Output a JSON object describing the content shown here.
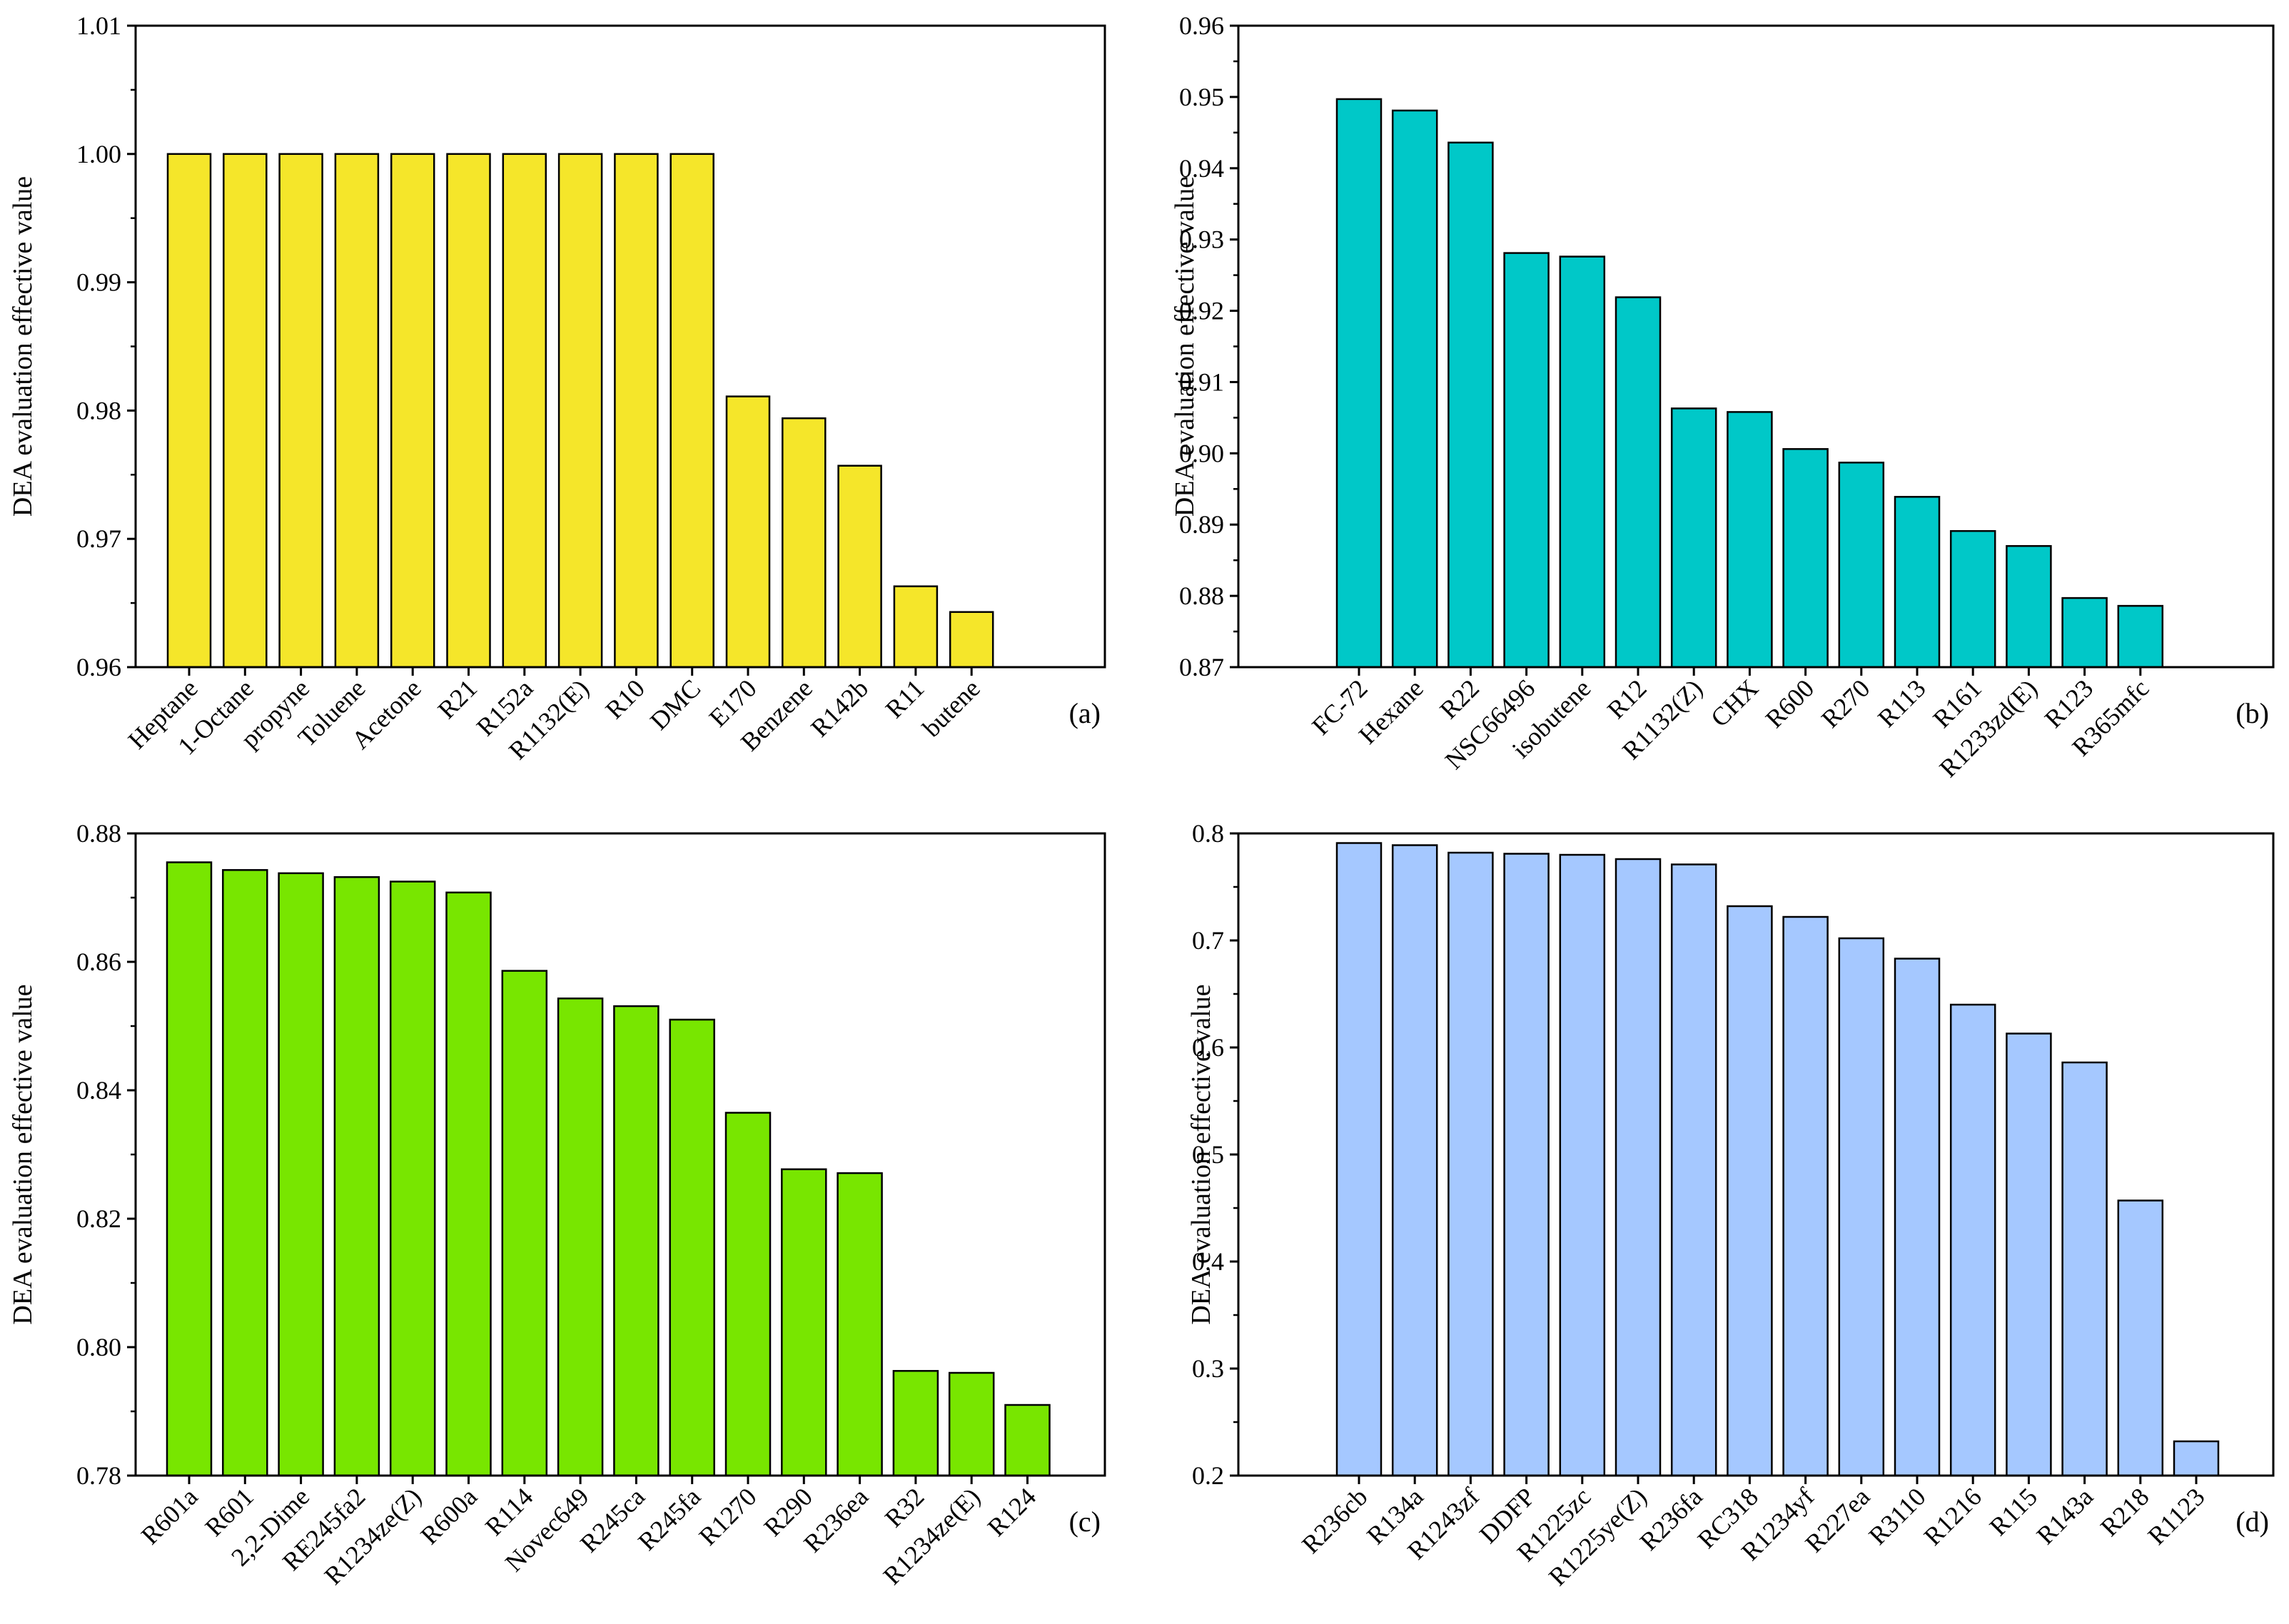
{
  "chart_data": [
    {
      "type": "bar",
      "panel": "(a)",
      "title": "",
      "xlabel": "",
      "ylabel": "DEA evaluation effective value",
      "ylim": [
        0.96,
        1.01
      ],
      "yticks": [
        0.96,
        0.97,
        0.98,
        0.99,
        1.0,
        1.01
      ],
      "ytick_labels": [
        "0.96",
        "0.97",
        "0.98",
        "0.99",
        "1.00",
        "1.01"
      ],
      "bar_color": "#f5e62a",
      "categories": [
        "Heptane",
        "1-Octane",
        "propyne",
        "Toluene",
        "Acetone",
        "R21",
        "R152a",
        "R1132(E)",
        "R10",
        "DMC",
        "E170",
        "Benzene",
        "R142b",
        "R11",
        "butene"
      ],
      "values": [
        1.0,
        1.0,
        1.0,
        1.0,
        1.0,
        1.0,
        1.0,
        1.0,
        1.0,
        1.0,
        0.9811,
        0.9794,
        0.9757,
        0.9663,
        0.9643
      ]
    },
    {
      "type": "bar",
      "panel": "(b)",
      "title": "",
      "xlabel": "",
      "ylabel": "DEA evaluation effective value",
      "ylim": [
        0.87,
        0.96
      ],
      "yticks": [
        0.87,
        0.88,
        0.89,
        0.9,
        0.91,
        0.92,
        0.93,
        0.94,
        0.95,
        0.96
      ],
      "ytick_labels": [
        "0.87",
        "0.88",
        "0.89",
        "0.90",
        "0.91",
        "0.92",
        "0.93",
        "0.94",
        "0.95",
        "0.96"
      ],
      "bar_color": "#00c8c8",
      "categories": [
        "FC-72",
        "Hexane",
        "R22",
        "NSC66496",
        "isobutene",
        "R12",
        "R1132(Z)",
        "CHX",
        "R600",
        "R270",
        "R113",
        "R161",
        "R1233zd(E)",
        "R123",
        "R365mfc"
      ],
      "values": [
        0.9497,
        0.9481,
        0.9436,
        0.9281,
        0.9276,
        0.9219,
        0.9063,
        0.9058,
        0.9006,
        0.8987,
        0.8939,
        0.8891,
        0.887,
        0.8797,
        0.8786
      ]
    },
    {
      "type": "bar",
      "panel": "(c)",
      "title": "",
      "xlabel": "",
      "ylabel": "DEA evaluation effective value",
      "ylim": [
        0.78,
        0.88
      ],
      "yticks": [
        0.78,
        0.8,
        0.82,
        0.84,
        0.86,
        0.88
      ],
      "ytick_labels": [
        "0.78",
        "0.80",
        "0.82",
        "0.84",
        "0.86",
        "0.88"
      ],
      "bar_color": "#78e600",
      "categories": [
        "R601a",
        "R601",
        "2,2-Dime",
        "RE245fa2",
        "R1234ze(Z)",
        "R600a",
        "R114",
        "Novec649",
        "R245ca",
        "R245fa",
        "R1270",
        "R290",
        "R236ea",
        "R32",
        "R1234ze(E)",
        "R124"
      ],
      "values": [
        0.8755,
        0.8743,
        0.8738,
        0.8732,
        0.8725,
        0.8708,
        0.8586,
        0.8543,
        0.8531,
        0.851,
        0.8365,
        0.8277,
        0.8271,
        0.7963,
        0.796,
        0.791
      ]
    },
    {
      "type": "bar",
      "panel": "(d)",
      "title": "",
      "xlabel": "",
      "ylabel": "DEA evaluation effective value",
      "ylim": [
        0.2,
        0.8
      ],
      "yticks": [
        0.2,
        0.3,
        0.4,
        0.5,
        0.6,
        0.7,
        0.8
      ],
      "ytick_labels": [
        "0.2",
        "0.3",
        "0.4",
        "0.5",
        "0.6",
        "0.7",
        "0.8"
      ],
      "bar_color": "#a5c8ff",
      "categories": [
        "R236cb",
        "R134a",
        "R1243zf",
        "DDFP",
        "R1225zc",
        "R1225ye(Z)",
        "R236fa",
        "RC318",
        "R1234yf",
        "R227ea",
        "R3110",
        "R1216",
        "R115",
        "R143a",
        "R218",
        "R1123"
      ],
      "values": [
        0.791,
        0.789,
        0.782,
        0.781,
        0.78,
        0.776,
        0.771,
        0.732,
        0.722,
        0.702,
        0.683,
        0.64,
        0.613,
        0.586,
        0.457,
        0.232
      ]
    }
  ]
}
